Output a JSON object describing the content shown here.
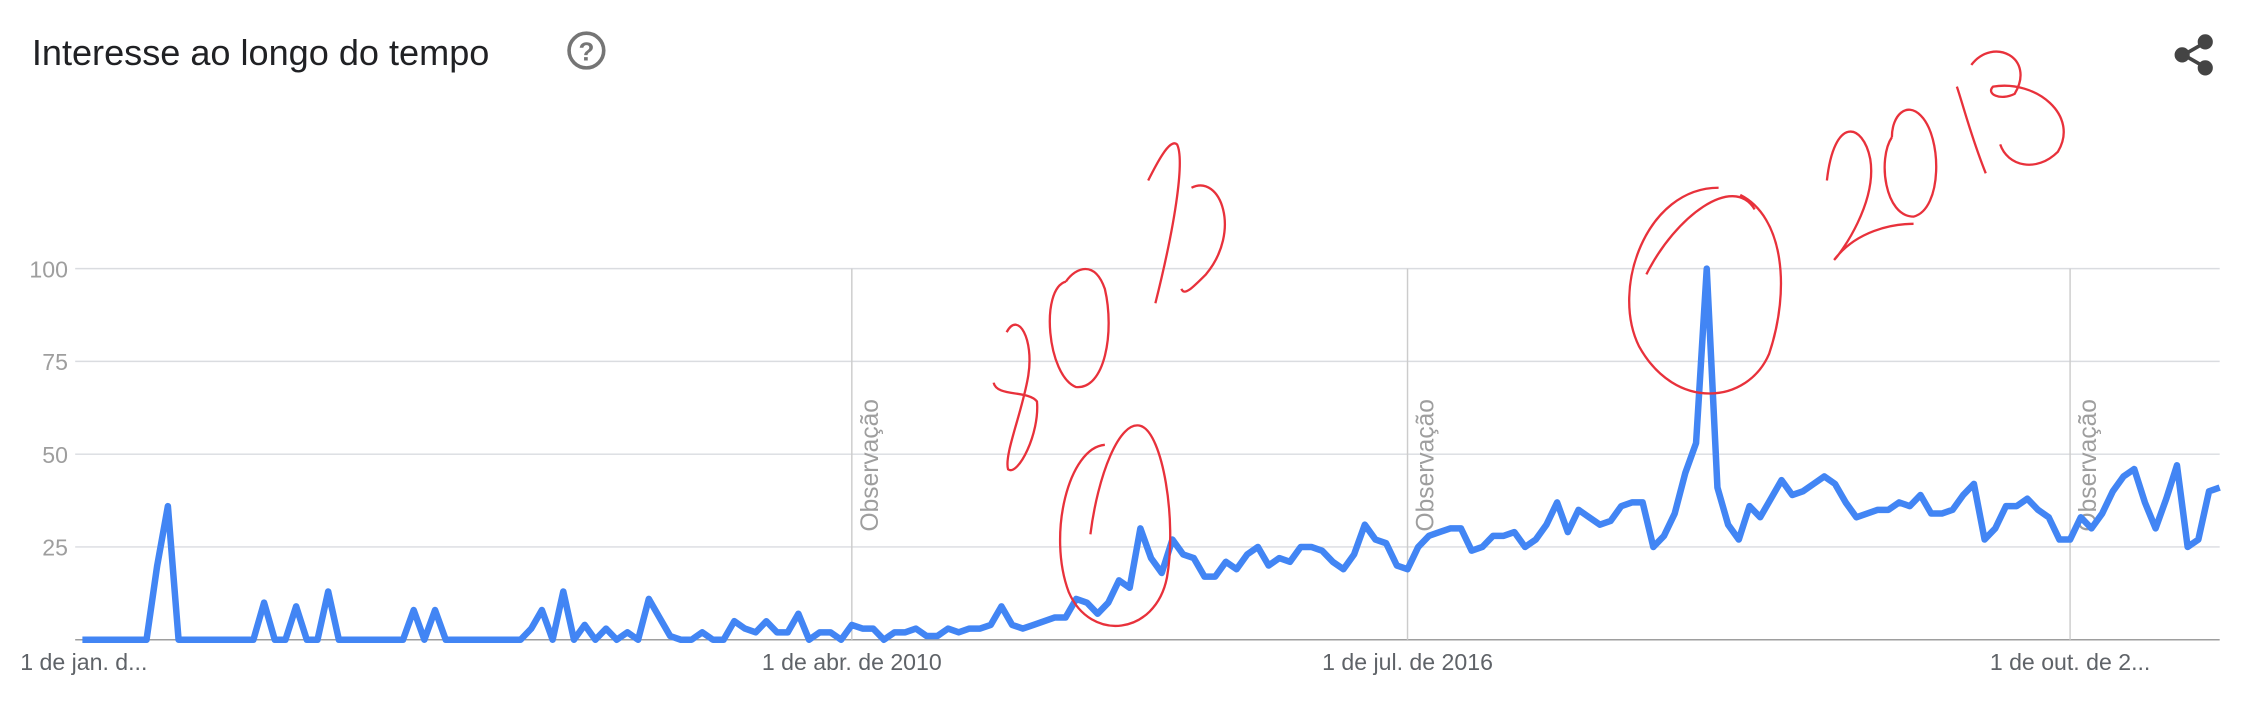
{
  "chart_data": {
    "type": "line",
    "title": "Interesse ao longo do tempo",
    "help_icon": "?",
    "categories": [
      "1 de jan. d...",
      null,
      null,
      null,
      null,
      null,
      null,
      null,
      null,
      null,
      null,
      null,
      null,
      null,
      null,
      null,
      null,
      null,
      null,
      null,
      null,
      null,
      null,
      null,
      null,
      null,
      null,
      null,
      null,
      null,
      null,
      null,
      null,
      null,
      null,
      null,
      null,
      null,
      null,
      null,
      null,
      null,
      null,
      null,
      null,
      null,
      null,
      null,
      null,
      null,
      null,
      null,
      null,
      null,
      null,
      null,
      null,
      null,
      null,
      null,
      null,
      null,
      null,
      null,
      null,
      null,
      null,
      null,
      null,
      null,
      null,
      null,
      "1 de abr. de 2010",
      null,
      null,
      null,
      null,
      null,
      null,
      null,
      null,
      null,
      null,
      null,
      null,
      null,
      null,
      null,
      null,
      null,
      null,
      null,
      null,
      null,
      null,
      null,
      null,
      null,
      null,
      null,
      null,
      null,
      null,
      null,
      null,
      null,
      null,
      null,
      null,
      null,
      null,
      null,
      null,
      null,
      null,
      null,
      null,
      null,
      null,
      null,
      null,
      null,
      null,
      null,
      "1 de jul. de 2016",
      null,
      null,
      null,
      null,
      null,
      null,
      null,
      null,
      null,
      null,
      null,
      null,
      null,
      null,
      null,
      null,
      null,
      null,
      null,
      null,
      null,
      null,
      null,
      null,
      null,
      null,
      null,
      null,
      null,
      null,
      null,
      null,
      null,
      null,
      null,
      null,
      null,
      null,
      null,
      null,
      null,
      null,
      null,
      null,
      null,
      null,
      null,
      null,
      null,
      null,
      null,
      null,
      null,
      null,
      null,
      null,
      null,
      null,
      null,
      null,
      null,
      "1 de out. de 2...",
      null,
      null,
      null,
      null,
      null,
      null,
      null,
      null,
      null,
      null,
      null,
      null,
      null,
      null
    ],
    "series": [
      {
        "color": "#4285f4",
        "values": [
          0,
          0,
          0,
          0,
          0,
          0,
          0,
          20,
          36,
          0,
          0,
          0,
          0,
          0,
          0,
          0,
          0,
          10,
          0,
          0,
          9,
          0,
          0,
          13,
          0,
          0,
          0,
          0,
          0,
          0,
          0,
          8,
          0,
          8,
          0,
          0,
          0,
          0,
          0,
          0,
          0,
          0,
          3,
          8,
          0,
          13,
          0,
          4,
          0,
          3,
          0,
          2,
          0,
          11,
          6,
          1,
          0,
          0,
          2,
          0,
          0,
          5,
          3,
          2,
          5,
          2,
          2,
          7,
          0,
          2,
          2,
          0,
          4,
          3,
          3,
          0,
          2,
          2,
          3,
          1,
          1,
          3,
          2,
          3,
          3,
          4,
          9,
          4,
          3,
          4,
          5,
          6,
          6,
          11,
          10,
          7,
          10,
          16,
          14,
          30,
          22,
          18,
          27,
          23,
          22,
          17,
          17,
          21,
          19,
          23,
          25,
          20,
          22,
          21,
          25,
          25,
          24,
          21,
          19,
          23,
          31,
          27,
          26,
          20,
          19,
          25,
          28,
          29,
          30,
          30,
          24,
          25,
          28,
          28,
          29,
          25,
          27,
          31,
          37,
          29,
          35,
          33,
          31,
          32,
          36,
          37,
          37,
          25,
          28,
          34,
          45,
          53,
          100,
          41,
          31,
          27,
          36,
          33,
          38,
          43,
          39,
          40,
          42,
          44,
          42,
          37,
          33,
          34,
          35,
          35,
          37,
          36,
          39,
          34,
          34,
          35,
          39,
          42,
          27,
          30,
          36,
          36,
          38,
          35,
          33,
          27,
          27,
          33,
          30,
          34,
          40,
          44,
          46,
          37,
          30,
          38,
          47,
          25,
          27,
          40,
          41
        ]
      }
    ],
    "ylim": [
      0,
      100
    ],
    "yticks": [
      25,
      50,
      75,
      100
    ],
    "grid": true,
    "annotations": [
      "Observação",
      "Observação",
      "Observação"
    ]
  }
}
